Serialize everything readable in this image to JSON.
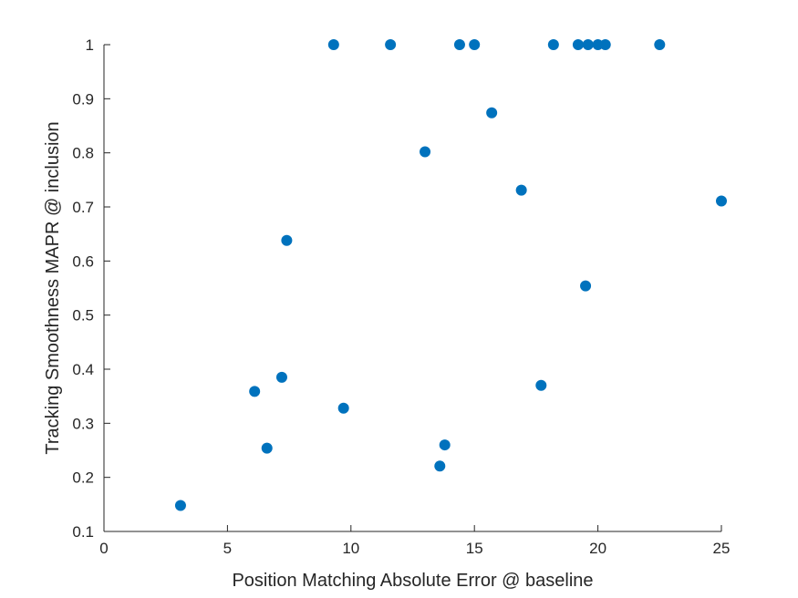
{
  "chart_data": {
    "type": "scatter",
    "xlabel": "Position Matching Absolute Error @ baseline",
    "ylabel": "Tracking Smoothness MAPR @ inclusion",
    "xlim": [
      0,
      25
    ],
    "ylim": [
      0.1,
      1
    ],
    "x_ticks": [
      "0",
      "5",
      "10",
      "15",
      "20",
      "25"
    ],
    "y_ticks": [
      "0.1",
      "0.2",
      "0.3",
      "0.4",
      "0.5",
      "0.6",
      "0.7",
      "0.8",
      "0.9",
      "1"
    ],
    "grid": false,
    "marker_color": "#0072BD",
    "points": [
      {
        "x": 3.1,
        "y": 0.148
      },
      {
        "x": 6.1,
        "y": 0.359
      },
      {
        "x": 6.6,
        "y": 0.254
      },
      {
        "x": 7.2,
        "y": 0.385
      },
      {
        "x": 7.4,
        "y": 0.638
      },
      {
        "x": 9.3,
        "y": 1.0
      },
      {
        "x": 9.7,
        "y": 0.328
      },
      {
        "x": 11.6,
        "y": 1.0
      },
      {
        "x": 13.0,
        "y": 0.802
      },
      {
        "x": 13.6,
        "y": 0.221
      },
      {
        "x": 13.8,
        "y": 0.26
      },
      {
        "x": 14.4,
        "y": 1.0
      },
      {
        "x": 15.0,
        "y": 1.0
      },
      {
        "x": 15.7,
        "y": 0.874
      },
      {
        "x": 16.9,
        "y": 0.731
      },
      {
        "x": 17.7,
        "y": 0.37
      },
      {
        "x": 18.2,
        "y": 1.0
      },
      {
        "x": 19.2,
        "y": 1.0
      },
      {
        "x": 19.5,
        "y": 0.554
      },
      {
        "x": 19.6,
        "y": 1.0
      },
      {
        "x": 20.0,
        "y": 1.0
      },
      {
        "x": 20.3,
        "y": 1.0
      },
      {
        "x": 22.5,
        "y": 1.0
      },
      {
        "x": 25.0,
        "y": 0.711
      }
    ]
  }
}
